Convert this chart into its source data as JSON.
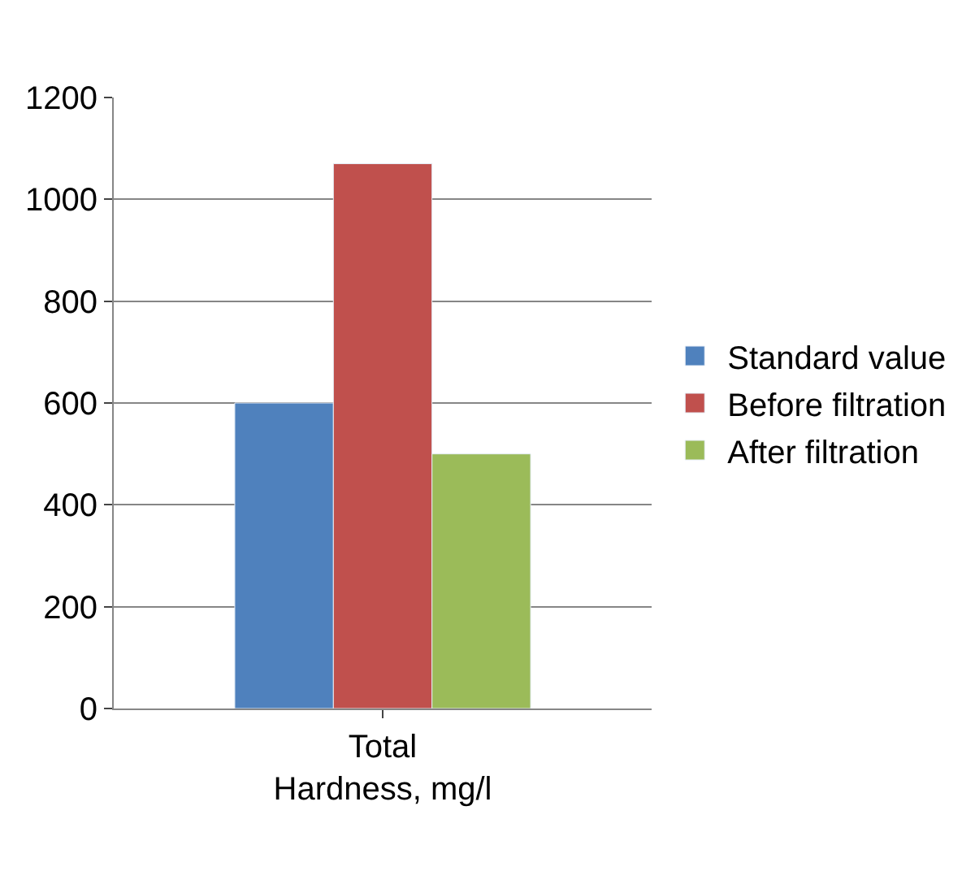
{
  "chart_data": {
    "type": "bar",
    "categories": [
      "Total Hardness, mg/l"
    ],
    "series": [
      {
        "name": "Standard value",
        "color": "#4f81bd",
        "values": [
          600
        ]
      },
      {
        "name": "Before filtration",
        "color": "#c0504d",
        "values": [
          1070
        ]
      },
      {
        "name": "After filtration",
        "color": "#9bbb59",
        "values": [
          500
        ]
      }
    ],
    "ylim": [
      0,
      1200
    ],
    "yticks": [
      0,
      200,
      400,
      600,
      800,
      1000,
      1200
    ],
    "grid": "y",
    "legend": "right"
  }
}
